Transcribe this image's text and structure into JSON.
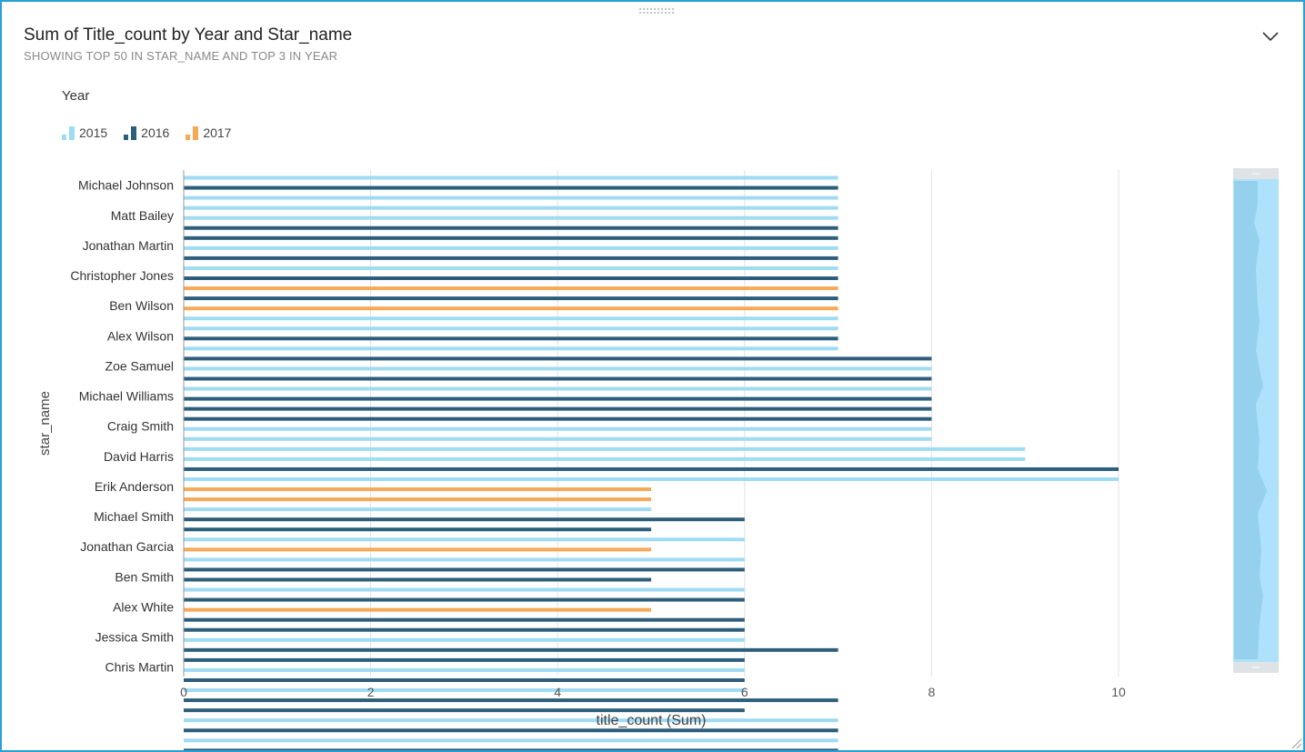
{
  "header": {
    "title": "Sum of Title_count by Year and Star_name",
    "subtitle": "SHOWING TOP 50 IN STAR_NAME AND TOP 3 IN YEAR"
  },
  "legend": {
    "title": "Year",
    "items": [
      {
        "label": "2015",
        "color": "#9fdbf2"
      },
      {
        "label": "2016",
        "color": "#2d5e7c"
      },
      {
        "label": "2017",
        "color": "#f6a957"
      }
    ]
  },
  "chart_data": {
    "type": "bar",
    "orientation": "horizontal",
    "xlabel": "title_count (Sum)",
    "ylabel": "star_name",
    "xlim": [
      0,
      10
    ],
    "x_ticks": [
      "0",
      "2",
      "4",
      "6",
      "8",
      "10"
    ],
    "grid": true,
    "legend_position": "top-left",
    "category_labels": [
      "Michael Johnson",
      "Matt Bailey",
      "Jonathan Martin",
      "Christopher Jones",
      "Ben Wilson",
      "Alex Wilson",
      "Zoe Samuel",
      "Michael Williams",
      "Craig Smith",
      "David Harris",
      "Erik Anderson",
      "Michael Smith",
      "Jonathan Garcia",
      "Ben Smith",
      "Alex White",
      "Jessica Smith",
      "Chris Martin"
    ],
    "bars": [
      {
        "year": "2015",
        "value": 7
      },
      {
        "year": "2016",
        "value": 7
      },
      {
        "year": "2015",
        "value": 7
      },
      {
        "year": "2015",
        "value": 7
      },
      {
        "year": "2015",
        "value": 7
      },
      {
        "year": "2016",
        "value": 7
      },
      {
        "year": "2016",
        "value": 7
      },
      {
        "year": "2015",
        "value": 7
      },
      {
        "year": "2016",
        "value": 7
      },
      {
        "year": "2015",
        "value": 7
      },
      {
        "year": "2016",
        "value": 7
      },
      {
        "year": "2017",
        "value": 7
      },
      {
        "year": "2016",
        "value": 7
      },
      {
        "year": "2017",
        "value": 7
      },
      {
        "year": "2015",
        "value": 7
      },
      {
        "year": "2015",
        "value": 7
      },
      {
        "year": "2016",
        "value": 7
      },
      {
        "year": "2015",
        "value": 7
      },
      {
        "year": "2016",
        "value": 8
      },
      {
        "year": "2015",
        "value": 8
      },
      {
        "year": "2016",
        "value": 8
      },
      {
        "year": "2015",
        "value": 8
      },
      {
        "year": "2016",
        "value": 8
      },
      {
        "year": "2016",
        "value": 8
      },
      {
        "year": "2016",
        "value": 8
      },
      {
        "year": "2015",
        "value": 8
      },
      {
        "year": "2015",
        "value": 8
      },
      {
        "year": "2015",
        "value": 9
      },
      {
        "year": "2015",
        "value": 9
      },
      {
        "year": "2016",
        "value": 10
      },
      {
        "year": "2015",
        "value": 10
      },
      {
        "year": "2017",
        "value": 5
      },
      {
        "year": "2017",
        "value": 5
      },
      {
        "year": "2015",
        "value": 5
      },
      {
        "year": "2016",
        "value": 6
      },
      {
        "year": "2016",
        "value": 5
      },
      {
        "year": "2015",
        "value": 6
      },
      {
        "year": "2017",
        "value": 5
      },
      {
        "year": "2015",
        "value": 6
      },
      {
        "year": "2016",
        "value": 6
      },
      {
        "year": "2016",
        "value": 5
      },
      {
        "year": "2015",
        "value": 6
      },
      {
        "year": "2016",
        "value": 6
      },
      {
        "year": "2017",
        "value": 5
      },
      {
        "year": "2016",
        "value": 6
      },
      {
        "year": "2016",
        "value": 6
      },
      {
        "year": "2015",
        "value": 6
      },
      {
        "year": "2016",
        "value": 7
      },
      {
        "year": "2016",
        "value": 6
      },
      {
        "year": "2015",
        "value": 6
      },
      {
        "year": "2016",
        "value": 6
      },
      {
        "year": "2015",
        "value": 6
      },
      {
        "year": "2016",
        "value": 7
      },
      {
        "year": "2016",
        "value": 6
      },
      {
        "year": "2015",
        "value": 7
      },
      {
        "year": "2016",
        "value": 7
      },
      {
        "year": "2015",
        "value": 7
      },
      {
        "year": "2016",
        "value": 7
      },
      {
        "year": "2016",
        "value": 7
      },
      {
        "year": "2015",
        "value": 9
      }
    ]
  },
  "scrollbar": {
    "track_color": "#aee2fb",
    "thumb_color": "#8fcde9",
    "position_fraction": 0.0
  }
}
